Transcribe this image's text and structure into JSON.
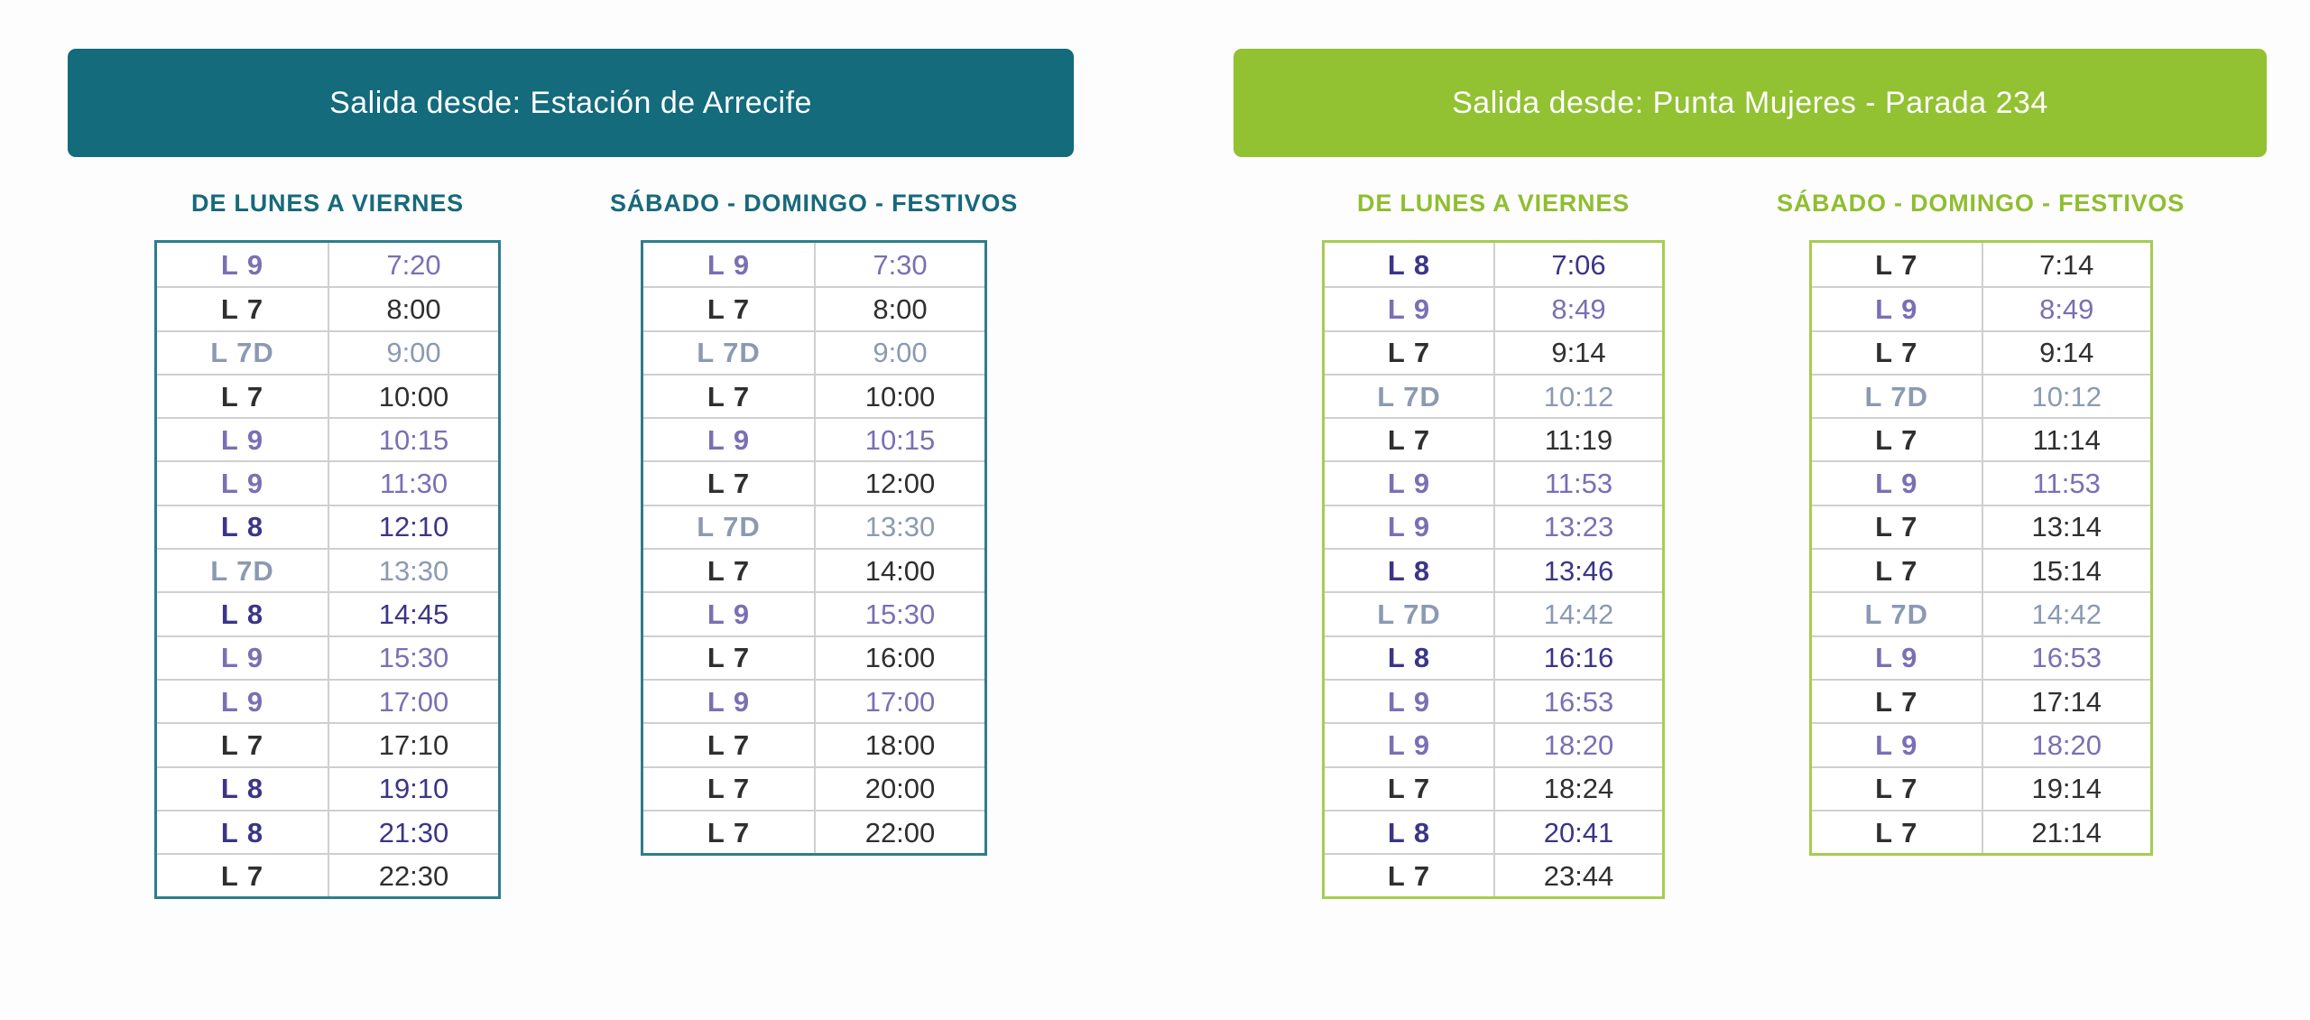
{
  "page": {
    "background": "#fdfdfd",
    "row_divider_color": "#cfcfcf"
  },
  "line_colors": {
    "L7": "#2f2f2f",
    "L8": "#3b3588",
    "L9": "#7b6fb4",
    "L7D": "#8b9ab2"
  },
  "sections": [
    {
      "title": "Salida desde: Estación de Arrecife",
      "theme": {
        "header_bg": "#136b7c",
        "header_text": "#ffffff",
        "label_text": "#17697a",
        "table_border": "#2e7d8c"
      },
      "tables": [
        {
          "label": "DE LUNES A VIERNES",
          "rows": [
            {
              "line": "L 9",
              "time": "7:20"
            },
            {
              "line": "L 7",
              "time": "8:00"
            },
            {
              "line": "L 7D",
              "time": "9:00"
            },
            {
              "line": "L 7",
              "time": "10:00"
            },
            {
              "line": "L 9",
              "time": "10:15"
            },
            {
              "line": "L 9",
              "time": "11:30"
            },
            {
              "line": "L 8",
              "time": "12:10"
            },
            {
              "line": "L 7D",
              "time": "13:30"
            },
            {
              "line": "L 8",
              "time": "14:45"
            },
            {
              "line": "L 9",
              "time": "15:30"
            },
            {
              "line": "L 9",
              "time": "17:00"
            },
            {
              "line": "L 7",
              "time": "17:10"
            },
            {
              "line": "L 8",
              "time": "19:10"
            },
            {
              "line": "L 8",
              "time": "21:30"
            },
            {
              "line": "L 7",
              "time": "22:30"
            }
          ]
        },
        {
          "label": "SÁBADO - DOMINGO - FESTIVOS",
          "rows": [
            {
              "line": "L 9",
              "time": "7:30"
            },
            {
              "line": "L 7",
              "time": "8:00"
            },
            {
              "line": "L 7D",
              "time": "9:00"
            },
            {
              "line": "L 7",
              "time": "10:00"
            },
            {
              "line": "L 9",
              "time": "10:15"
            },
            {
              "line": "L 7",
              "time": "12:00"
            },
            {
              "line": "L 7D",
              "time": "13:30"
            },
            {
              "line": "L 7",
              "time": "14:00"
            },
            {
              "line": "L 9",
              "time": "15:30"
            },
            {
              "line": "L 7",
              "time": "16:00"
            },
            {
              "line": "L 9",
              "time": "17:00"
            },
            {
              "line": "L 7",
              "time": "18:00"
            },
            {
              "line": "L 7",
              "time": "20:00"
            },
            {
              "line": "L 7",
              "time": "22:00"
            }
          ]
        }
      ]
    },
    {
      "title": "Salida desde: Punta Mujeres - Parada 234",
      "theme": {
        "header_bg": "#92c132",
        "header_text": "#ffffff",
        "label_text": "#8fbe2f",
        "table_border": "#a6cc52"
      },
      "tables": [
        {
          "label": "DE LUNES A VIERNES",
          "rows": [
            {
              "line": "L 8",
              "time": "7:06"
            },
            {
              "line": "L 9",
              "time": "8:49"
            },
            {
              "line": "L 7",
              "time": "9:14"
            },
            {
              "line": "L 7D",
              "time": "10:12"
            },
            {
              "line": "L 7",
              "time": "11:19"
            },
            {
              "line": "L 9",
              "time": "11:53"
            },
            {
              "line": "L 9",
              "time": "13:23"
            },
            {
              "line": "L 8",
              "time": "13:46"
            },
            {
              "line": "L 7D",
              "time": "14:42"
            },
            {
              "line": "L 8",
              "time": "16:16"
            },
            {
              "line": "L 9",
              "time": "16:53"
            },
            {
              "line": "L 9",
              "time": "18:20"
            },
            {
              "line": "L 7",
              "time": "18:24"
            },
            {
              "line": "L 8",
              "time": "20:41"
            },
            {
              "line": "L 7",
              "time": "23:44"
            }
          ]
        },
        {
          "label": "SÁBADO - DOMINGO - FESTIVOS",
          "rows": [
            {
              "line": "L 7",
              "time": "7:14"
            },
            {
              "line": "L 9",
              "time": "8:49"
            },
            {
              "line": "L 7",
              "time": "9:14"
            },
            {
              "line": "L 7D",
              "time": "10:12"
            },
            {
              "line": "L 7",
              "time": "11:14"
            },
            {
              "line": "L 9",
              "time": "11:53"
            },
            {
              "line": "L 7",
              "time": "13:14"
            },
            {
              "line": "L 7",
              "time": "15:14"
            },
            {
              "line": "L 7D",
              "time": "14:42"
            },
            {
              "line": "L 9",
              "time": "16:53"
            },
            {
              "line": "L 7",
              "time": "17:14"
            },
            {
              "line": "L 9",
              "time": "18:20"
            },
            {
              "line": "L 7",
              "time": "19:14"
            },
            {
              "line": "L 7",
              "time": "21:14"
            }
          ]
        }
      ]
    }
  ]
}
